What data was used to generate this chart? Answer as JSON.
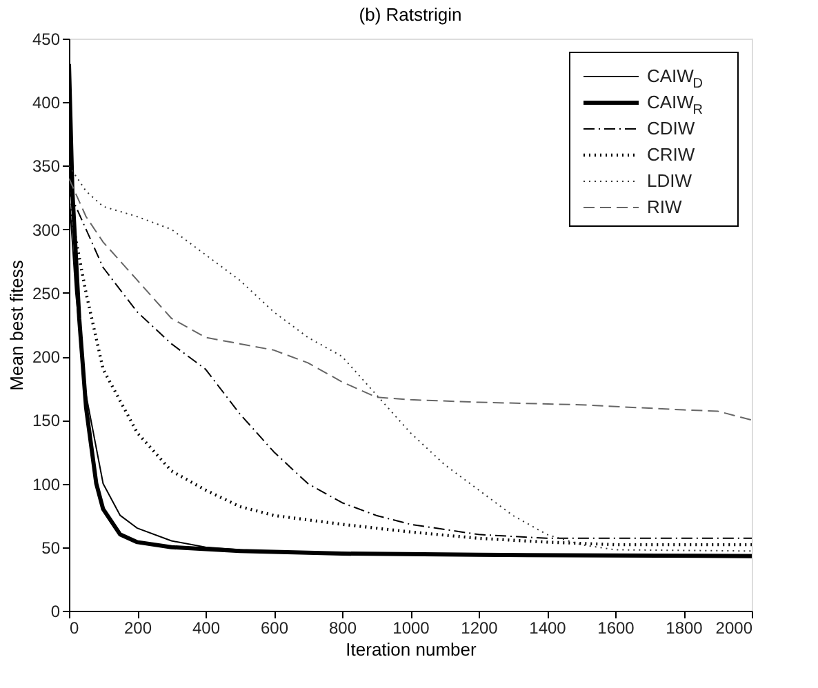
{
  "chart_data": {
    "type": "line",
    "title": "(b) Ratstrigin",
    "xlabel": "Iteration number",
    "ylabel": "Mean best fitess",
    "xlim": [
      0,
      2000
    ],
    "xticks": [
      0,
      200,
      400,
      600,
      800,
      1000,
      1200,
      1400,
      1600,
      1800,
      2000
    ],
    "ylim": [
      0,
      450
    ],
    "yticks": [
      0,
      50,
      100,
      150,
      200,
      250,
      300,
      350,
      400,
      450
    ],
    "grid": false,
    "legend": "top right",
    "marker": "none",
    "series": [
      {
        "name": "CAIW$_{D}$",
        "color": "#000000",
        "line_style": "solid",
        "x": [
          0,
          20,
          50,
          100,
          150,
          200,
          300,
          400,
          600,
          1000,
          2000
        ],
        "values": [
          330,
          250,
          170,
          100,
          75,
          65,
          55,
          50,
          46,
          44,
          44
        ]
      },
      {
        "name": "CAIW$_{R}$",
        "color": "#000000",
        "line_style": "solid",
        "x": [
          0,
          10,
          30,
          50,
          80,
          100,
          150,
          200,
          300,
          500,
          800,
          1200,
          2000
        ],
        "values": [
          430,
          330,
          230,
          160,
          100,
          80,
          60,
          54,
          50,
          47,
          45,
          44,
          43
        ]
      },
      {
        "name": "CDIW",
        "color": "#000000",
        "line_style": "dashdot",
        "x": [
          0,
          50,
          100,
          200,
          300,
          400,
          500,
          600,
          700,
          800,
          900,
          1000,
          1200,
          1400,
          2000
        ],
        "values": [
          330,
          300,
          270,
          235,
          210,
          190,
          155,
          125,
          100,
          85,
          75,
          68,
          60,
          57,
          57
        ]
      },
      {
        "name": "CRIW",
        "color": "#000000",
        "line_style": "dotted",
        "x": [
          0,
          50,
          100,
          200,
          300,
          400,
          500,
          600,
          800,
          1000,
          1200,
          1400,
          1600,
          2000
        ],
        "values": [
          320,
          250,
          190,
          140,
          110,
          95,
          82,
          75,
          68,
          62,
          57,
          54,
          52,
          52
        ]
      },
      {
        "name": "LDIW",
        "color": "#333333",
        "line_style": "dotted",
        "x": [
          0,
          50,
          100,
          200,
          300,
          400,
          500,
          600,
          700,
          800,
          900,
          1000,
          1100,
          1200,
          1300,
          1400,
          1500,
          1600,
          2000
        ],
        "values": [
          350,
          330,
          318,
          310,
          300,
          280,
          260,
          235,
          215,
          200,
          170,
          140,
          115,
          95,
          75,
          60,
          52,
          48,
          47
        ]
      },
      {
        "name": "RIW",
        "color": "#666666",
        "line_style": "dashed",
        "x": [
          0,
          50,
          100,
          200,
          300,
          400,
          500,
          600,
          700,
          800,
          900,
          1000,
          1200,
          1500,
          1800,
          1900,
          2000
        ],
        "values": [
          340,
          310,
          290,
          260,
          230,
          215,
          210,
          205,
          195,
          180,
          168,
          166,
          164,
          162,
          158,
          157,
          150
        ]
      }
    ]
  }
}
